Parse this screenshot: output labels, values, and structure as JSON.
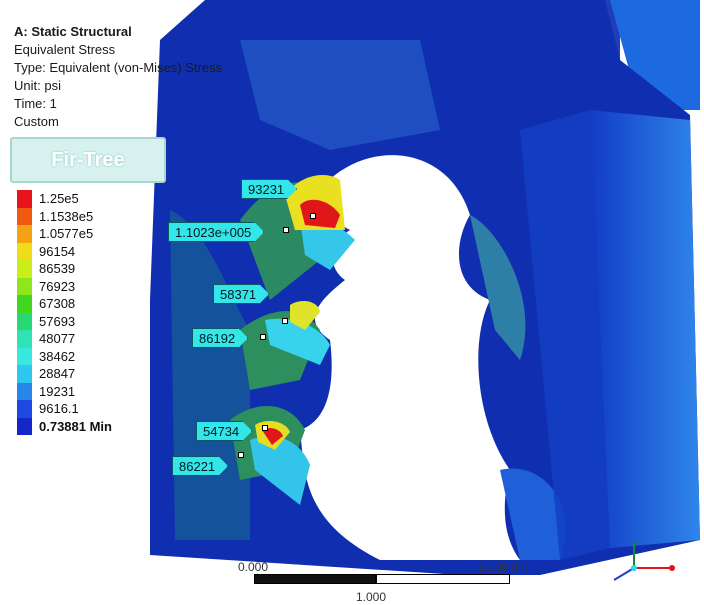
{
  "result_info": {
    "analysis": "A: Static Structural",
    "result": "Equivalent Stress",
    "type": "Type: Equivalent (von-Mises) Stress",
    "unit": "Unit: psi",
    "time": "Time: 1",
    "custom": "Custom"
  },
  "result_name": "Fir-Tree",
  "legend": [
    {
      "label": "1.25e5",
      "color": "#e8141c"
    },
    {
      "label": "1.1538e5",
      "color": "#f25a14"
    },
    {
      "label": "1.0577e5",
      "color": "#f5a313"
    },
    {
      "label": "96154",
      "color": "#f0dd18"
    },
    {
      "label": "86539",
      "color": "#c9ee1c"
    },
    {
      "label": "76923",
      "color": "#8ee61d"
    },
    {
      "label": "67308",
      "color": "#3fd81f"
    },
    {
      "label": "57693",
      "color": "#29d874"
    },
    {
      "label": "48077",
      "color": "#2fe3b7"
    },
    {
      "label": "38462",
      "color": "#3ae8e0"
    },
    {
      "label": "28847",
      "color": "#2fc6ef"
    },
    {
      "label": "19231",
      "color": "#2786ea"
    },
    {
      "label": "9616.1",
      "color": "#1f48e0"
    },
    {
      "label": "0.73881 Min",
      "color": "#1526c8"
    }
  ],
  "probes": [
    {
      "label": "93231"
    },
    {
      "label": "1.1023e+005"
    },
    {
      "label": "58371"
    },
    {
      "label": "86192"
    },
    {
      "label": "54734"
    },
    {
      "label": "86221"
    }
  ],
  "scale": {
    "left_label": "0.000",
    "right_label": "2.000 (in)",
    "mid_label": "1.000"
  },
  "colors": {
    "deep_blue": "#0d2aa8",
    "mid_blue": "#1f5fd8",
    "light_blue": "#3f97ec",
    "green": "#2e8f5a",
    "yellow": "#e9e020",
    "red": "#e0161a"
  }
}
